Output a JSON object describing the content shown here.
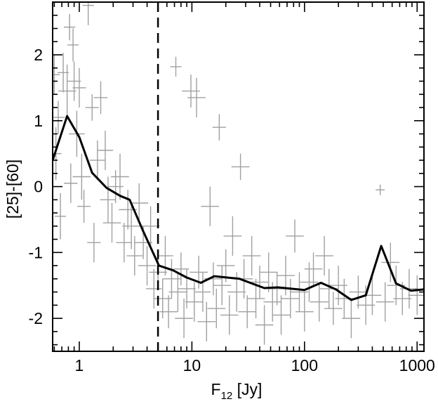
{
  "chart_data": {
    "type": "scatter",
    "title": "",
    "xlabel": {
      "main": "F",
      "subscript": "12",
      "unit": " [Jy]"
    },
    "ylabel": "[25]-[60]",
    "xscale": "log",
    "xlim": [
      0.58,
      1150
    ],
    "ylim": [
      -2.5,
      2.8
    ],
    "xticks": [
      {
        "value": 1,
        "label": "1"
      },
      {
        "value": 10,
        "label": "10"
      },
      {
        "value": 100,
        "label": "100"
      },
      {
        "value": 1000,
        "label": "1000"
      }
    ],
    "yticks": [
      {
        "value": 2,
        "label": "2"
      },
      {
        "value": 1,
        "label": "1"
      },
      {
        "value": 0,
        "label": "0"
      },
      {
        "value": -1,
        "label": "-1"
      },
      {
        "value": -2,
        "label": "-2"
      }
    ],
    "grid": false,
    "colors": {
      "points": "#a0a0a0",
      "median_line": "#000000",
      "threshold_line": "#000000"
    },
    "threshold_line": {
      "x": 5,
      "style": "dashed"
    },
    "series": [
      {
        "kind": "median-line",
        "points": [
          [
            0.58,
            0.4
          ],
          [
            0.78,
            1.07
          ],
          [
            1.0,
            0.75
          ],
          [
            1.3,
            0.21
          ],
          [
            1.75,
            -0.02
          ],
          [
            2.3,
            -0.14
          ],
          [
            2.8,
            -0.2
          ],
          [
            3.7,
            -0.68
          ],
          [
            5.1,
            -1.2
          ],
          [
            6.8,
            -1.27
          ],
          [
            9.0,
            -1.38
          ],
          [
            12.0,
            -1.46
          ],
          [
            15.8,
            -1.36
          ],
          [
            20.5,
            -1.38
          ],
          [
            26.5,
            -1.4
          ],
          [
            34.0,
            -1.47
          ],
          [
            44.0,
            -1.54
          ],
          [
            58.0,
            -1.53
          ],
          [
            100.0,
            -1.57
          ],
          [
            140.0,
            -1.46
          ],
          [
            190.0,
            -1.56
          ],
          [
            260.0,
            -1.72
          ],
          [
            350.0,
            -1.65
          ],
          [
            480.0,
            -0.9
          ],
          [
            650.0,
            -1.47
          ],
          [
            880.0,
            -1.58
          ],
          [
            1150.0,
            -1.56
          ]
        ]
      },
      {
        "kind": "data-points-with-errors",
        "points": [
          [
            0.6,
            1.7,
            0.05,
            0.3
          ],
          [
            0.62,
            0.5,
            0.05,
            0.4
          ],
          [
            0.65,
            1.05,
            0.06,
            0.25
          ],
          [
            0.68,
            -0.45,
            0.05,
            0.35
          ],
          [
            0.72,
            1.73,
            0.05,
            0.3
          ],
          [
            0.78,
            1.45,
            0.08,
            0.4
          ],
          [
            0.82,
            2.42,
            0.05,
            0.2
          ],
          [
            0.84,
            0.05,
            0.06,
            0.3
          ],
          [
            0.88,
            2.15,
            0.05,
            0.25
          ],
          [
            0.9,
            1.6,
            0.06,
            0.3
          ],
          [
            0.95,
            0.8,
            0.07,
            0.35
          ],
          [
            1.0,
            1.5,
            0.06,
            0.3
          ],
          [
            1.05,
            0.15,
            0.08,
            0.35
          ],
          [
            1.1,
            -0.3,
            0.06,
            0.25
          ],
          [
            1.2,
            2.75,
            0.05,
            0.3
          ],
          [
            1.3,
            1.2,
            0.06,
            0.2
          ],
          [
            1.35,
            -0.85,
            0.06,
            0.3
          ],
          [
            1.45,
            0.4,
            0.07,
            0.3
          ],
          [
            1.55,
            1.35,
            0.06,
            0.25
          ],
          [
            1.7,
            0.55,
            0.07,
            0.3
          ],
          [
            1.8,
            -0.2,
            0.07,
            0.35
          ],
          [
            1.95,
            -0.55,
            0.08,
            0.3
          ],
          [
            2.1,
            0.0,
            0.07,
            0.25
          ],
          [
            2.3,
            0.15,
            0.08,
            0.35
          ],
          [
            2.5,
            -0.85,
            0.07,
            0.3
          ],
          [
            2.7,
            -0.35,
            0.08,
            0.3
          ],
          [
            2.9,
            -0.6,
            0.08,
            0.35
          ],
          [
            3.1,
            -1.05,
            0.07,
            0.3
          ],
          [
            3.4,
            -0.25,
            0.08,
            0.3
          ],
          [
            3.7,
            -0.85,
            0.08,
            0.25
          ],
          [
            4.0,
            -1.2,
            0.08,
            0.3
          ],
          [
            4.3,
            -0.6,
            0.08,
            0.3
          ],
          [
            4.6,
            -1.55,
            0.07,
            0.3
          ],
          [
            5.0,
            -1.3,
            0.08,
            0.25
          ],
          [
            5.5,
            -1.7,
            0.08,
            0.3
          ],
          [
            5.8,
            -1.05,
            0.07,
            0.3
          ],
          [
            6.2,
            -1.9,
            0.08,
            0.25
          ],
          [
            6.6,
            -1.4,
            0.08,
            0.3
          ],
          [
            7.2,
            1.82,
            0.05,
            0.15
          ],
          [
            7.5,
            -1.6,
            0.08,
            0.3
          ],
          [
            8.0,
            -1.25,
            0.07,
            0.25
          ],
          [
            8.5,
            -2.0,
            0.08,
            0.3
          ],
          [
            9.0,
            -1.55,
            0.08,
            0.3
          ],
          [
            9.8,
            1.45,
            0.08,
            0.25
          ],
          [
            10.5,
            -1.75,
            0.08,
            0.3
          ],
          [
            11.0,
            1.35,
            0.08,
            0.3
          ],
          [
            11.5,
            -1.3,
            0.08,
            0.25
          ],
          [
            12.5,
            -1.6,
            0.07,
            0.3
          ],
          [
            13.5,
            -2.05,
            0.08,
            0.3
          ],
          [
            14.5,
            -0.3,
            0.08,
            0.3
          ],
          [
            15.5,
            -1.4,
            0.08,
            0.25
          ],
          [
            16.5,
            -1.85,
            0.08,
            0.3
          ],
          [
            17.5,
            0.9,
            0.06,
            0.2
          ],
          [
            18.5,
            -1.5,
            0.08,
            0.3
          ],
          [
            20.0,
            -1.2,
            0.08,
            0.25
          ],
          [
            21.5,
            -1.95,
            0.08,
            0.3
          ],
          [
            23.0,
            -0.75,
            0.08,
            0.3
          ],
          [
            25.0,
            -1.6,
            0.08,
            0.3
          ],
          [
            27.0,
            0.3,
            0.08,
            0.2
          ],
          [
            29.0,
            -1.4,
            0.08,
            0.3
          ],
          [
            31.0,
            -1.9,
            0.08,
            0.25
          ],
          [
            34.0,
            -1.05,
            0.08,
            0.3
          ],
          [
            37.0,
            -1.7,
            0.08,
            0.3
          ],
          [
            40.0,
            -1.45,
            0.08,
            0.25
          ],
          [
            44.0,
            -2.1,
            0.08,
            0.3
          ],
          [
            48.0,
            -1.3,
            0.08,
            0.3
          ],
          [
            52.0,
            -1.75,
            0.08,
            0.3
          ],
          [
            57.0,
            -1.55,
            0.08,
            0.25
          ],
          [
            62.0,
            -1.95,
            0.08,
            0.3
          ],
          [
            68.0,
            -1.35,
            0.08,
            0.3
          ],
          [
            75.0,
            -1.7,
            0.08,
            0.3
          ],
          [
            82.0,
            -0.75,
            0.08,
            0.25
          ],
          [
            90.0,
            -1.6,
            0.08,
            0.3
          ],
          [
            100.0,
            -1.9,
            0.08,
            0.3
          ],
          [
            110.0,
            -1.45,
            0.08,
            0.3
          ],
          [
            120.0,
            -1.25,
            0.08,
            0.25
          ],
          [
            135.0,
            -1.75,
            0.08,
            0.3
          ],
          [
            150.0,
            -1.05,
            0.08,
            0.3
          ],
          [
            165.0,
            -1.55,
            0.08,
            0.3
          ],
          [
            180.0,
            -1.85,
            0.08,
            0.25
          ],
          [
            200.0,
            -1.5,
            0.08,
            0.3
          ],
          [
            225.0,
            -1.7,
            0.08,
            0.3
          ],
          [
            260.0,
            -2.0,
            0.08,
            0.3
          ],
          [
            300.0,
            -1.6,
            0.08,
            0.25
          ],
          [
            350.0,
            -1.8,
            0.08,
            0.3
          ],
          [
            400.0,
            -1.65,
            0.08,
            0.3
          ],
          [
            470.0,
            -0.05,
            0.04,
            0.08
          ],
          [
            520.0,
            -1.75,
            0.08,
            0.3
          ],
          [
            580.0,
            -1.15,
            0.08,
            0.3
          ],
          [
            650.0,
            -1.5,
            0.08,
            0.3
          ],
          [
            740.0,
            -1.7,
            0.08,
            0.25
          ],
          [
            850.0,
            -1.55,
            0.08,
            0.3
          ],
          [
            1000.0,
            -1.65,
            0.08,
            0.3
          ]
        ]
      }
    ]
  }
}
